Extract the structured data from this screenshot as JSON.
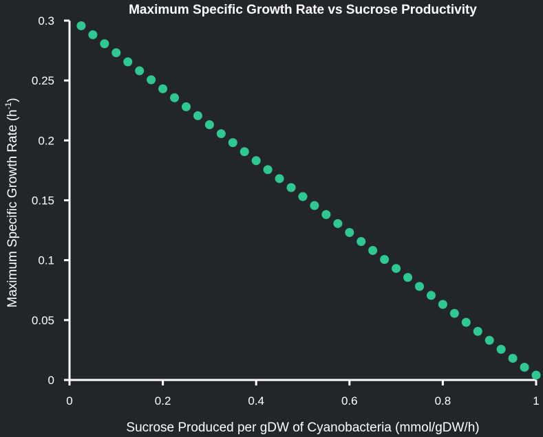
{
  "chart_data": {
    "type": "scatter",
    "title": "Maximum Specific Growth Rate vs Sucrose Productivity",
    "xlabel": "Sucrose Produced per gDW of Cyanobacteria (mmol/gDW/h)",
    "ylabel_main": "Maximum Specific Growth Rate (h",
    "ylabel_sup": "-1",
    "ylabel_end": ")",
    "xlim": [
      0,
      1
    ],
    "ylim": [
      0,
      0.3
    ],
    "xticks": [
      0,
      0.2,
      0.4,
      0.6,
      0.8,
      1
    ],
    "xtick_labels": [
      "0",
      "0.2",
      "0.4",
      "0.6",
      "0.8",
      "1"
    ],
    "yticks": [
      0,
      0.05,
      0.1,
      0.15,
      0.2,
      0.25,
      0.3
    ],
    "ytick_labels": [
      "0",
      "0.05",
      "0.1",
      "0.15",
      "0.2",
      "0.25",
      "0.3"
    ],
    "grid": false,
    "marker_color": "#2fc892",
    "axis_color": "#ffffff",
    "background": "#22262b",
    "x": [
      0.025,
      0.05,
      0.075,
      0.1,
      0.125,
      0.15,
      0.175,
      0.2,
      0.225,
      0.25,
      0.275,
      0.3,
      0.325,
      0.35,
      0.375,
      0.4,
      0.425,
      0.45,
      0.475,
      0.5,
      0.525,
      0.55,
      0.575,
      0.6,
      0.625,
      0.65,
      0.675,
      0.7,
      0.725,
      0.75,
      0.775,
      0.8,
      0.825,
      0.85,
      0.875,
      0.9,
      0.925,
      0.95,
      0.975,
      1.0
    ],
    "y": [
      0.2957,
      0.2882,
      0.2807,
      0.2732,
      0.2656,
      0.2581,
      0.2506,
      0.2431,
      0.2356,
      0.2281,
      0.2206,
      0.2131,
      0.2056,
      0.1981,
      0.1906,
      0.1831,
      0.1756,
      0.1681,
      0.1606,
      0.1531,
      0.1456,
      0.1381,
      0.1306,
      0.1231,
      0.1156,
      0.1081,
      0.1006,
      0.0931,
      0.0856,
      0.0781,
      0.0706,
      0.0631,
      0.0556,
      0.0481,
      0.0406,
      0.0331,
      0.0256,
      0.0181,
      0.0106,
      0.004
    ]
  }
}
